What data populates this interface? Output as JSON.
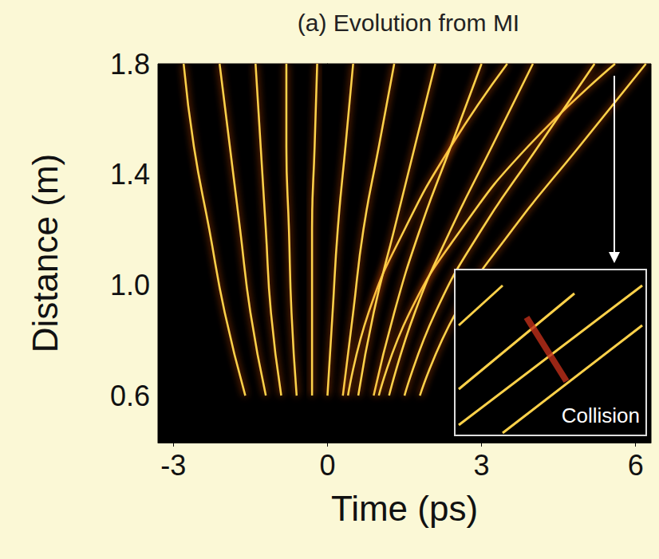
{
  "chart_data": {
    "type": "line",
    "title": "(a) Evolution from MI",
    "x_label": "Time (ps)",
    "y_label": "Distance (m)",
    "xlim": [
      -3.3,
      6.3
    ],
    "xticks": [
      -3,
      0,
      3,
      6
    ],
    "ylim": [
      0.43,
      1.8
    ],
    "yticks": [
      0.6,
      {
        "value": 1,
        "label": "1.0"
      },
      1.4,
      1.8
    ],
    "grid": false,
    "color": "#ffd24a",
    "line_style": "solid",
    "marker": "none",
    "annotations": [
      {
        "text": "Collision"
      }
    ],
    "series": [
      {
        "x": [
          -1.6,
          -2.0,
          -2.3,
          -2.6,
          -2.8
        ],
        "values": [
          0.6,
          0.9,
          1.2,
          1.5,
          1.8
        ]
      },
      {
        "x": [
          -1.2,
          -1.5,
          -1.7,
          -1.9,
          -2.1
        ],
        "values": [
          0.6,
          0.9,
          1.2,
          1.5,
          1.8
        ]
      },
      {
        "x": [
          -0.9,
          -1.1,
          -1.2,
          -1.3,
          -1.4
        ],
        "values": [
          0.6,
          0.9,
          1.2,
          1.5,
          1.8
        ]
      },
      {
        "x": [
          -0.6,
          -0.7,
          -0.75,
          -0.8,
          -0.8
        ],
        "values": [
          0.6,
          0.9,
          1.2,
          1.5,
          1.8
        ]
      },
      {
        "x": [
          -0.3,
          -0.3,
          -0.3,
          -0.25,
          -0.2
        ],
        "values": [
          0.6,
          0.9,
          1.2,
          1.5,
          1.8
        ]
      },
      {
        "x": [
          0.0,
          0.1,
          0.2,
          0.35,
          0.5
        ],
        "values": [
          0.6,
          0.9,
          1.2,
          1.5,
          1.8
        ]
      },
      {
        "x": [
          0.3,
          0.5,
          0.7,
          1.0,
          1.3
        ],
        "values": [
          0.6,
          0.9,
          1.2,
          1.5,
          1.8
        ]
      },
      {
        "x": [
          0.4,
          0.8,
          1.5,
          2.4,
          3.5
        ],
        "values": [
          0.6,
          0.9,
          1.2,
          1.5,
          1.8
        ]
      },
      {
        "x": [
          0.6,
          0.9,
          1.3,
          1.7,
          2.1
        ],
        "values": [
          0.6,
          0.9,
          1.2,
          1.5,
          1.8
        ]
      },
      {
        "x": [
          0.9,
          1.3,
          1.8,
          2.4,
          3.0
        ],
        "values": [
          0.6,
          0.9,
          1.2,
          1.5,
          1.8
        ]
      },
      {
        "x": [
          1.0,
          1.6,
          2.6,
          3.9,
          5.6
        ],
        "values": [
          0.6,
          0.9,
          1.2,
          1.5,
          1.8
        ]
      },
      {
        "x": [
          1.2,
          1.7,
          2.4,
          3.2,
          4.0
        ],
        "values": [
          0.6,
          0.9,
          1.2,
          1.5,
          1.8
        ]
      },
      {
        "x": [
          1.5,
          2.1,
          3.0,
          4.1,
          5.2
        ],
        "values": [
          0.6,
          0.9,
          1.2,
          1.5,
          1.8
        ]
      },
      {
        "x": [
          1.8,
          2.5,
          3.6,
          4.9,
          6.2
        ],
        "values": [
          0.6,
          0.9,
          1.2,
          1.5,
          1.8
        ]
      }
    ]
  }
}
